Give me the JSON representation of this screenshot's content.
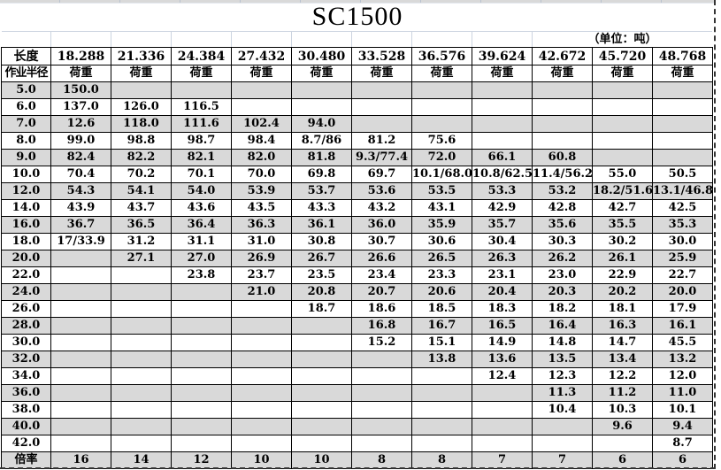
{
  "title": "SC1500",
  "unit_note": "（单位：吨）",
  "colors": {
    "row_shade": "#d9d9d9",
    "grid_line": "#ccd4e0",
    "table_border": "#000000",
    "background": "#ffffff"
  },
  "table": {
    "length_label": "长度",
    "radius_label": "作业半径",
    "load_label": "荷重",
    "lengths": [
      "18.288",
      "21.336",
      "24.384",
      "27.432",
      "30.480",
      "33.528",
      "36.576",
      "39.624",
      "42.672",
      "45.720",
      "48.768"
    ],
    "rows": [
      {
        "radius": "5.0",
        "values": [
          "150.0",
          "",
          "",
          "",
          "",
          "",
          "",
          "",
          "",
          "",
          ""
        ]
      },
      {
        "radius": "6.0",
        "values": [
          "137.0",
          "126.0",
          "116.5",
          "",
          "",
          "",
          "",
          "",
          "",
          "",
          ""
        ]
      },
      {
        "radius": "7.0",
        "values": [
          "12.6",
          "118.0",
          "111.6",
          "102.4",
          "94.0",
          "",
          "",
          "",
          "",
          "",
          ""
        ]
      },
      {
        "radius": "8.0",
        "values": [
          "99.0",
          "98.8",
          "98.7",
          "98.4",
          "8.7/86",
          "81.2",
          "75.6",
          "",
          "",
          "",
          ""
        ]
      },
      {
        "radius": "9.0",
        "values": [
          "82.4",
          "82.2",
          "82.1",
          "82.0",
          "81.8",
          "9.3/77.4",
          "72.0",
          "66.1",
          "60.8",
          "",
          ""
        ]
      },
      {
        "radius": "10.0",
        "values": [
          "70.4",
          "70.2",
          "70.1",
          "70.0",
          "69.8",
          "69.7",
          "10.1/68.0",
          "10.8/62.5",
          "11.4/56.2",
          "55.0",
          "50.5"
        ]
      },
      {
        "radius": "12.0",
        "values": [
          "54.3",
          "54.1",
          "54.0",
          "53.9",
          "53.7",
          "53.6",
          "53.5",
          "53.3",
          "53.2",
          "18.2/51.6",
          "13.1/46.8"
        ]
      },
      {
        "radius": "14.0",
        "values": [
          "43.9",
          "43.7",
          "43.6",
          "43.5",
          "43.3",
          "43.2",
          "43.1",
          "42.9",
          "42.8",
          "42.7",
          "42.5"
        ]
      },
      {
        "radius": "16.0",
        "values": [
          "36.7",
          "36.5",
          "36.4",
          "36.3",
          "36.1",
          "36.0",
          "35.9",
          "35.7",
          "35.6",
          "35.5",
          "35.3"
        ]
      },
      {
        "radius": "18.0",
        "values": [
          "17/33.9",
          "31.2",
          "31.1",
          "31.0",
          "30.8",
          "30.7",
          "30.6",
          "30.4",
          "30.3",
          "30.2",
          "30.0"
        ]
      },
      {
        "radius": "20.0",
        "values": [
          "",
          "27.1",
          "27.0",
          "26.9",
          "26.7",
          "26.6",
          "26.5",
          "26.3",
          "26.2",
          "26.1",
          "25.9"
        ]
      },
      {
        "radius": "22.0",
        "values": [
          "",
          "",
          "23.8",
          "23.7",
          "23.5",
          "23.4",
          "23.3",
          "23.1",
          "23.0",
          "22.9",
          "22.7"
        ]
      },
      {
        "radius": "24.0",
        "values": [
          "",
          "",
          "",
          "21.0",
          "20.8",
          "20.7",
          "20.6",
          "20.4",
          "20.3",
          "20.2",
          "20.0"
        ]
      },
      {
        "radius": "26.0",
        "values": [
          "",
          "",
          "",
          "",
          "18.7",
          "18.6",
          "18.5",
          "18.3",
          "18.2",
          "18.1",
          "17.9"
        ]
      },
      {
        "radius": "28.0",
        "values": [
          "",
          "",
          "",
          "",
          "",
          "16.8",
          "16.7",
          "16.5",
          "16.4",
          "16.3",
          "16.1"
        ]
      },
      {
        "radius": "30.0",
        "values": [
          "",
          "",
          "",
          "",
          "",
          "15.2",
          "15.1",
          "14.9",
          "14.8",
          "14.7",
          "45.5"
        ]
      },
      {
        "radius": "32.0",
        "values": [
          "",
          "",
          "",
          "",
          "",
          "",
          "13.8",
          "13.6",
          "13.5",
          "13.4",
          "13.2"
        ]
      },
      {
        "radius": "34.0",
        "values": [
          "",
          "",
          "",
          "",
          "",
          "",
          "",
          "12.4",
          "12.3",
          "12.2",
          "12.0"
        ]
      },
      {
        "radius": "36.0",
        "values": [
          "",
          "",
          "",
          "",
          "",
          "",
          "",
          "",
          "11.3",
          "11.2",
          "11.0"
        ]
      },
      {
        "radius": "38.0",
        "values": [
          "",
          "",
          "",
          "",
          "",
          "",
          "",
          "",
          "10.4",
          "10.3",
          "10.1"
        ]
      },
      {
        "radius": "40.0",
        "values": [
          "",
          "",
          "",
          "",
          "",
          "",
          "",
          "",
          "",
          "9.6",
          "9.4"
        ]
      },
      {
        "radius": "42.0",
        "values": [
          "",
          "",
          "",
          "",
          "",
          "",
          "",
          "",
          "",
          "",
          "8.7"
        ]
      }
    ],
    "footer": {
      "label": "倍率",
      "values": [
        "16",
        "14",
        "12",
        "10",
        "10",
        "8",
        "8",
        "7",
        "7",
        "6",
        "6"
      ]
    }
  }
}
